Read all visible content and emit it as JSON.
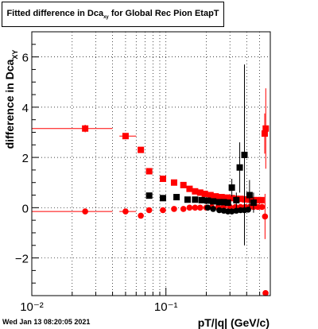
{
  "title": {
    "main": "Fitted difference in Dca",
    "sub": "xy",
    "rest": " for Global Rec Pion EtapT"
  },
  "timestamp": "Wed Jan 13 08:20:05 2021",
  "chart_data": {
    "type": "scatter",
    "xscale": "log",
    "xlim": [
      0.01,
      0.6
    ],
    "ylim": [
      -3.5,
      7
    ],
    "xlabel": "pT/|q| (GeV/c)",
    "ylabel": "difference in Dca",
    "ylabel_sub": "XY",
    "grid": true,
    "x_tick_labels": [
      "10⁻²",
      "10⁻¹"
    ],
    "y_tick_labels": [
      "−2",
      "0",
      "2",
      "4",
      "6"
    ],
    "y_ticks": [
      -2,
      0,
      2,
      4,
      6
    ],
    "colors": {
      "red": "#ff0000",
      "black": "#000000"
    },
    "series": [
      {
        "color": "red",
        "marker": "square",
        "points": [
          {
            "x": 0.025,
            "y": 3.15,
            "xlo": 0.01,
            "xhi": 0.04,
            "yerr": 0.15
          },
          {
            "x": 0.05,
            "y": 2.85,
            "xlo": 0.045,
            "xhi": 0.06,
            "yerr": 0.07
          },
          {
            "x": 0.065,
            "y": 2.3,
            "xlo": 0.062,
            "xhi": 0.068,
            "yerr": 0.07
          },
          {
            "x": 0.075,
            "y": 1.45,
            "xlo": 0.072,
            "xhi": 0.078,
            "yerr": 0.06
          },
          {
            "x": 0.095,
            "y": 1.15,
            "xlo": 0.09,
            "xhi": 0.1,
            "yerr": 0.05
          },
          {
            "x": 0.115,
            "y": 1.0,
            "xlo": 0.11,
            "xhi": 0.12,
            "yerr": 0.05
          },
          {
            "x": 0.135,
            "y": 0.9,
            "xlo": 0.13,
            "xhi": 0.14,
            "yerr": 0.05
          },
          {
            "x": 0.15,
            "y": 0.75,
            "xlo": 0.145,
            "xhi": 0.155,
            "yerr": 0.05
          },
          {
            "x": 0.165,
            "y": 0.65,
            "xlo": 0.16,
            "xhi": 0.17,
            "yerr": 0.05
          },
          {
            "x": 0.18,
            "y": 0.6,
            "xlo": 0.175,
            "xhi": 0.185,
            "yerr": 0.05
          },
          {
            "x": 0.195,
            "y": 0.55,
            "xlo": 0.19,
            "xhi": 0.2,
            "yerr": 0.05
          },
          {
            "x": 0.215,
            "y": 0.5,
            "xlo": 0.21,
            "xhi": 0.22,
            "yerr": 0.05
          },
          {
            "x": 0.235,
            "y": 0.45,
            "xlo": 0.23,
            "xhi": 0.24,
            "yerr": 0.05
          },
          {
            "x": 0.26,
            "y": 0.42,
            "xlo": 0.25,
            "xhi": 0.27,
            "yerr": 0.05
          },
          {
            "x": 0.285,
            "y": 0.4,
            "xlo": 0.28,
            "xhi": 0.29,
            "yerr": 0.05
          },
          {
            "x": 0.31,
            "y": 0.38,
            "xlo": 0.3,
            "xhi": 0.32,
            "yerr": 0.05
          },
          {
            "x": 0.335,
            "y": 0.35,
            "xlo": 0.33,
            "xhi": 0.34,
            "yerr": 0.05
          },
          {
            "x": 0.36,
            "y": 0.35,
            "xlo": 0.35,
            "xhi": 0.37,
            "yerr": 0.05
          },
          {
            "x": 0.39,
            "y": 0.33,
            "xlo": 0.38,
            "xhi": 0.4,
            "yerr": 0.05
          },
          {
            "x": 0.42,
            "y": 0.32,
            "xlo": 0.41,
            "xhi": 0.43,
            "yerr": 0.05
          },
          {
            "x": 0.45,
            "y": 0.3,
            "xlo": 0.44,
            "xhi": 0.46,
            "yerr": 0.05
          },
          {
            "x": 0.485,
            "y": 0.3,
            "xlo": 0.475,
            "xhi": 0.495,
            "yerr": 0.05
          },
          {
            "x": 0.515,
            "y": 0.3,
            "xlo": 0.505,
            "xhi": 0.525,
            "yerr": 0.05
          },
          {
            "x": 0.545,
            "y": 2.95,
            "xlo": 0.54,
            "xhi": 0.55,
            "yerr": 0.8
          },
          {
            "x": 0.555,
            "y": 3.15,
            "xlo": 0.55,
            "xhi": 0.56,
            "yerr": 1.6
          }
        ]
      },
      {
        "color": "red",
        "marker": "circle",
        "points": [
          {
            "x": 0.025,
            "y": -0.15,
            "xlo": 0.01,
            "xhi": 0.04,
            "yerr": 0.06
          },
          {
            "x": 0.05,
            "y": -0.15,
            "xlo": 0.045,
            "xhi": 0.06,
            "yerr": 0.04
          },
          {
            "x": 0.065,
            "y": -0.32,
            "xlo": 0.062,
            "xhi": 0.068,
            "yerr": 0.05
          },
          {
            "x": 0.075,
            "y": -0.1,
            "xlo": 0.072,
            "xhi": 0.078,
            "yerr": 0.04
          },
          {
            "x": 0.095,
            "y": -0.1,
            "xlo": 0.09,
            "xhi": 0.1,
            "yerr": 0.04
          },
          {
            "x": 0.115,
            "y": -0.05,
            "xlo": 0.11,
            "xhi": 0.12,
            "yerr": 0.04
          },
          {
            "x": 0.135,
            "y": -0.05,
            "xlo": 0.13,
            "xhi": 0.14,
            "yerr": 0.04
          },
          {
            "x": 0.15,
            "y": 0.0,
            "xlo": 0.145,
            "xhi": 0.155,
            "yerr": 0.04
          },
          {
            "x": 0.165,
            "y": 0.0,
            "xlo": 0.16,
            "xhi": 0.17,
            "yerr": 0.04
          },
          {
            "x": 0.18,
            "y": 0.0,
            "xlo": 0.175,
            "xhi": 0.185,
            "yerr": 0.04
          },
          {
            "x": 0.2,
            "y": 0.0,
            "xlo": 0.195,
            "xhi": 0.205,
            "yerr": 0.04
          },
          {
            "x": 0.22,
            "y": 0.02,
            "xlo": 0.215,
            "xhi": 0.225,
            "yerr": 0.04
          },
          {
            "x": 0.245,
            "y": 0.02,
            "xlo": 0.24,
            "xhi": 0.25,
            "yerr": 0.04
          },
          {
            "x": 0.27,
            "y": 0.03,
            "xlo": 0.265,
            "xhi": 0.275,
            "yerr": 0.04
          },
          {
            "x": 0.3,
            "y": 0.03,
            "xlo": 0.295,
            "xhi": 0.305,
            "yerr": 0.04
          },
          {
            "x": 0.33,
            "y": 0.03,
            "xlo": 0.325,
            "xhi": 0.335,
            "yerr": 0.04
          },
          {
            "x": 0.36,
            "y": 0.03,
            "xlo": 0.355,
            "xhi": 0.365,
            "yerr": 0.04
          },
          {
            "x": 0.39,
            "y": 0.03,
            "xlo": 0.385,
            "xhi": 0.395,
            "yerr": 0.04
          },
          {
            "x": 0.42,
            "y": 0.03,
            "xlo": 0.415,
            "xhi": 0.425,
            "yerr": 0.04
          },
          {
            "x": 0.45,
            "y": 0.03,
            "xlo": 0.445,
            "xhi": 0.455,
            "yerr": 0.04
          },
          {
            "x": 0.485,
            "y": 0.03,
            "xlo": 0.48,
            "xhi": 0.49,
            "yerr": 0.04
          },
          {
            "x": 0.52,
            "y": 0.03,
            "xlo": 0.515,
            "xhi": 0.525,
            "yerr": 0.04
          },
          {
            "x": 0.548,
            "y": -0.35,
            "xlo": 0.545,
            "xhi": 0.551,
            "yerr": 0.9
          },
          {
            "x": 0.553,
            "y": -3.4,
            "xlo": 0.55,
            "xhi": 0.556,
            "yerr": 0.1
          }
        ]
      },
      {
        "color": "black",
        "marker": "square",
        "points": [
          {
            "x": 0.075,
            "y": 0.48,
            "xlo": 0.072,
            "xhi": 0.078,
            "yerr": 0.05
          },
          {
            "x": 0.095,
            "y": 0.38,
            "xlo": 0.09,
            "xhi": 0.1,
            "yerr": 0.05
          },
          {
            "x": 0.12,
            "y": 0.42,
            "xlo": 0.115,
            "xhi": 0.125,
            "yerr": 0.05
          },
          {
            "x": 0.145,
            "y": 0.32,
            "xlo": 0.14,
            "xhi": 0.15,
            "yerr": 0.05
          },
          {
            "x": 0.165,
            "y": 0.32,
            "xlo": 0.16,
            "xhi": 0.17,
            "yerr": 0.05
          },
          {
            "x": 0.185,
            "y": 0.3,
            "xlo": 0.18,
            "xhi": 0.19,
            "yerr": 0.05
          },
          {
            "x": 0.205,
            "y": 0.28,
            "xlo": 0.2,
            "xhi": 0.21,
            "yerr": 0.05
          },
          {
            "x": 0.225,
            "y": 0.25,
            "xlo": 0.22,
            "xhi": 0.23,
            "yerr": 0.05
          },
          {
            "x": 0.25,
            "y": 0.22,
            "xlo": 0.245,
            "xhi": 0.255,
            "yerr": 0.05
          },
          {
            "x": 0.27,
            "y": 0.22,
            "xlo": 0.265,
            "xhi": 0.275,
            "yerr": 0.05
          },
          {
            "x": 0.29,
            "y": 0.2,
            "xlo": 0.285,
            "xhi": 0.295,
            "yerr": 0.05
          },
          {
            "x": 0.31,
            "y": 0.8,
            "xlo": 0.305,
            "xhi": 0.315,
            "yerr": 0.35
          },
          {
            "x": 0.335,
            "y": 0.3,
            "xlo": 0.33,
            "xhi": 0.34,
            "yerr": 0.3
          },
          {
            "x": 0.355,
            "y": 1.6,
            "xlo": 0.35,
            "xhi": 0.36,
            "yerr": 1.0
          },
          {
            "x": 0.385,
            "y": 2.1,
            "xlo": 0.38,
            "xhi": 0.39,
            "yerr": 3.6
          },
          {
            "x": 0.42,
            "y": 0.5,
            "xlo": 0.415,
            "xhi": 0.425,
            "yerr": 0.6
          },
          {
            "x": 0.45,
            "y": 0.2,
            "xlo": 0.445,
            "xhi": 0.455,
            "yerr": 0.4
          }
        ]
      },
      {
        "color": "black",
        "marker": "circle",
        "points": [
          {
            "x": 0.205,
            "y": 0.0,
            "xlo": 0.2,
            "xhi": 0.21,
            "yerr": 0.05
          },
          {
            "x": 0.225,
            "y": -0.05,
            "xlo": 0.22,
            "xhi": 0.23,
            "yerr": 0.05
          },
          {
            "x": 0.25,
            "y": -0.1,
            "xlo": 0.245,
            "xhi": 0.255,
            "yerr": 0.05
          },
          {
            "x": 0.27,
            "y": -0.12,
            "xlo": 0.265,
            "xhi": 0.275,
            "yerr": 0.05
          },
          {
            "x": 0.29,
            "y": -0.15,
            "xlo": 0.285,
            "xhi": 0.295,
            "yerr": 0.05
          },
          {
            "x": 0.31,
            "y": -0.15,
            "xlo": 0.305,
            "xhi": 0.315,
            "yerr": 0.06
          },
          {
            "x": 0.335,
            "y": -0.12,
            "xlo": 0.33,
            "xhi": 0.34,
            "yerr": 0.06
          },
          {
            "x": 0.36,
            "y": -0.1,
            "xlo": 0.355,
            "xhi": 0.365,
            "yerr": 0.06
          },
          {
            "x": 0.385,
            "y": -0.1,
            "xlo": 0.38,
            "xhi": 0.39,
            "yerr": 0.06
          },
          {
            "x": 0.41,
            "y": -0.08,
            "xlo": 0.405,
            "xhi": 0.415,
            "yerr": 0.06
          }
        ]
      }
    ]
  }
}
